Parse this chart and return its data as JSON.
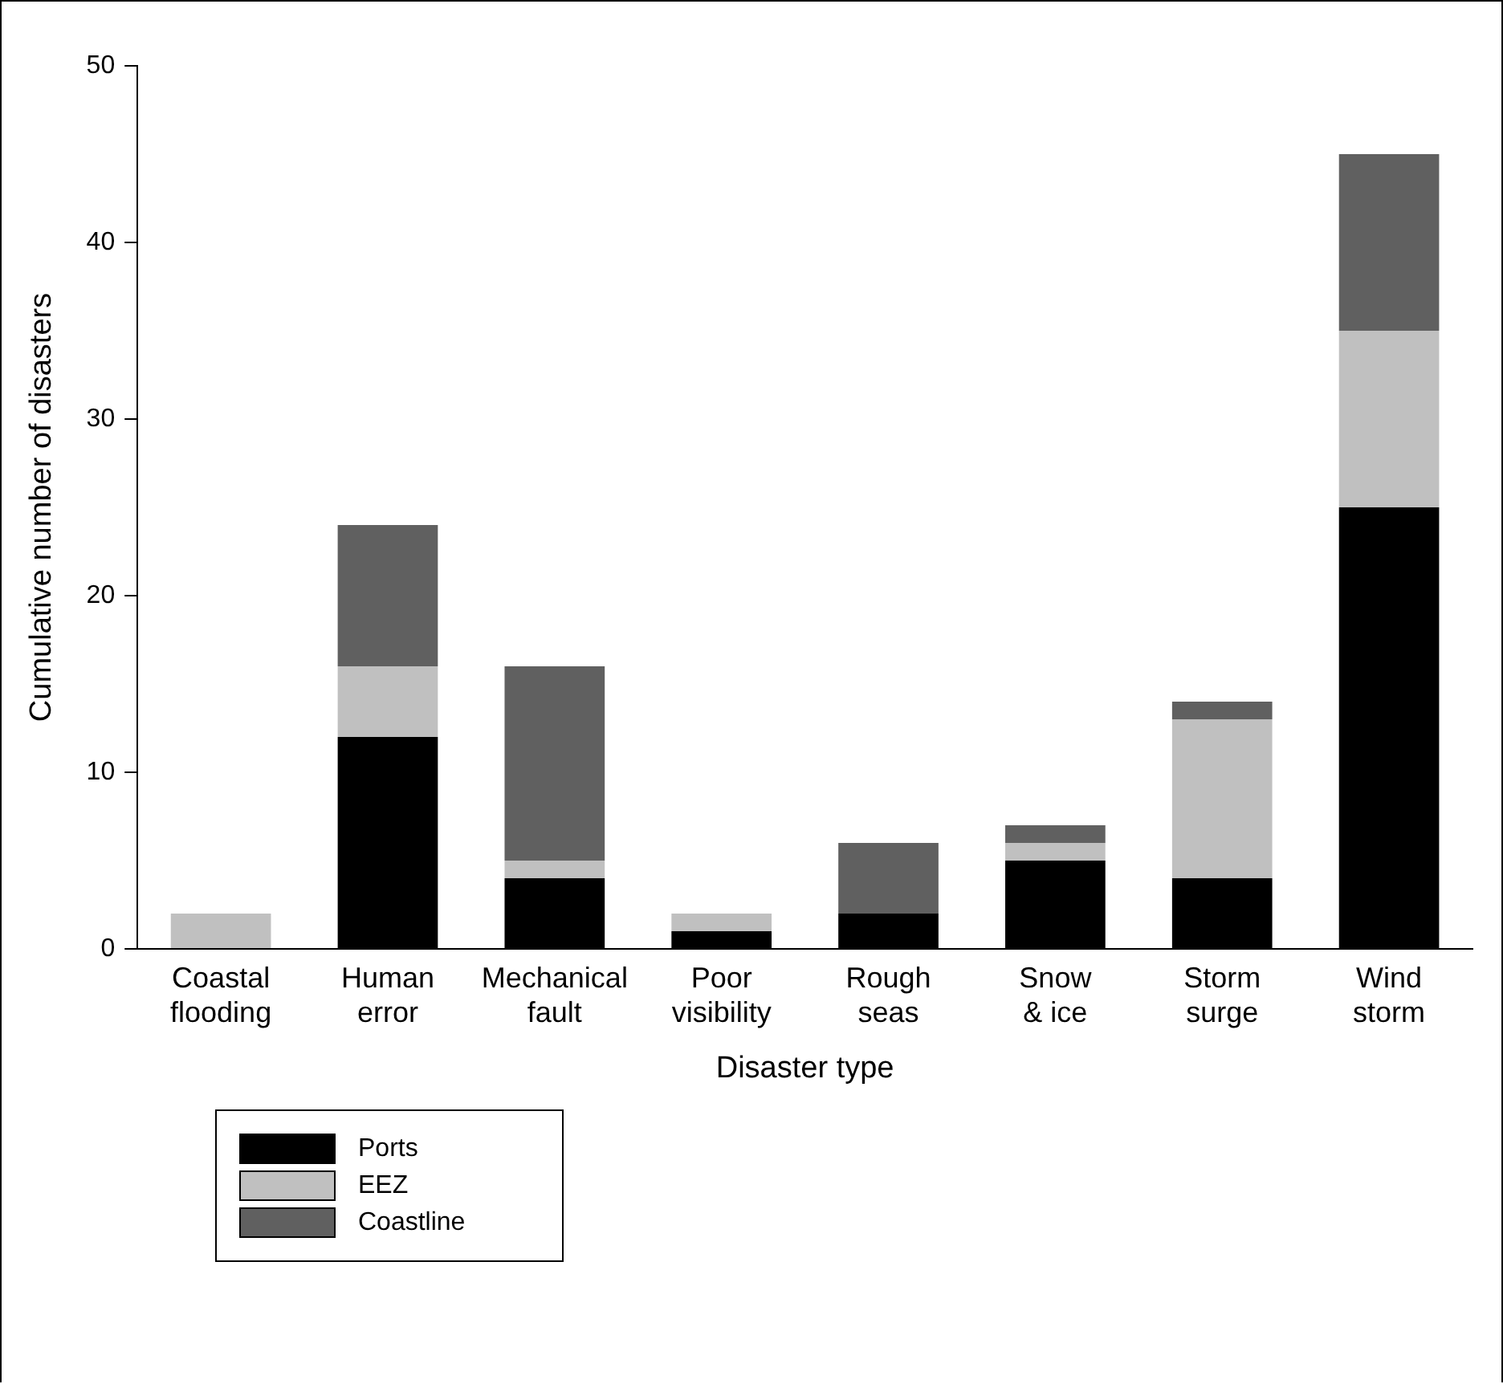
{
  "chart_data": {
    "type": "bar",
    "stacked": true,
    "xlabel": "Disaster type",
    "ylabel": "Cumulative number of disasters",
    "categories": [
      "Coastal flooding",
      "Human error",
      "Mechanical fault",
      "Poor visibility",
      "Rough seas",
      "Snow & ice",
      "Storm surge",
      "Wind storm"
    ],
    "series": [
      {
        "name": "Ports",
        "color": "#000000",
        "values": [
          0,
          12,
          4,
          1,
          2,
          5,
          4,
          25
        ]
      },
      {
        "name": "EEZ",
        "color": "#c0c0c0",
        "values": [
          2,
          4,
          1,
          1,
          0,
          1,
          9,
          10
        ]
      },
      {
        "name": "Coastline",
        "color": "#606060",
        "values": [
          0,
          8,
          11,
          0,
          4,
          1,
          1,
          10
        ]
      }
    ],
    "ylim": [
      0,
      50
    ],
    "yticks": [
      0,
      10,
      20,
      30,
      40,
      50
    ],
    "grid": false,
    "legend": "bottom left"
  }
}
